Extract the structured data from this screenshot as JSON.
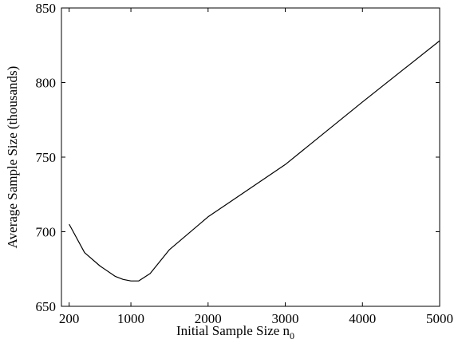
{
  "chart_data": {
    "type": "line",
    "xlabel": "Initial Sample Size n",
    "xlabel_subscript": "0",
    "ylabel": "Average Sample Size (thousands)",
    "xlim": [
      100,
      5000
    ],
    "ylim": [
      650,
      850
    ],
    "xticks": [
      200,
      1000,
      2000,
      3000,
      4000,
      5000
    ],
    "yticks": [
      650,
      700,
      750,
      800,
      850
    ],
    "grid": false,
    "series": [
      {
        "color": "#000000",
        "x": [
          200,
          400,
          600,
          800,
          900,
          1000,
          1100,
          1250,
          1500,
          2000,
          3000,
          4000,
          5000
        ],
        "y": [
          705,
          686,
          677,
          670,
          668,
          667,
          667,
          672,
          688,
          710,
          745,
          787,
          828
        ]
      }
    ]
  }
}
